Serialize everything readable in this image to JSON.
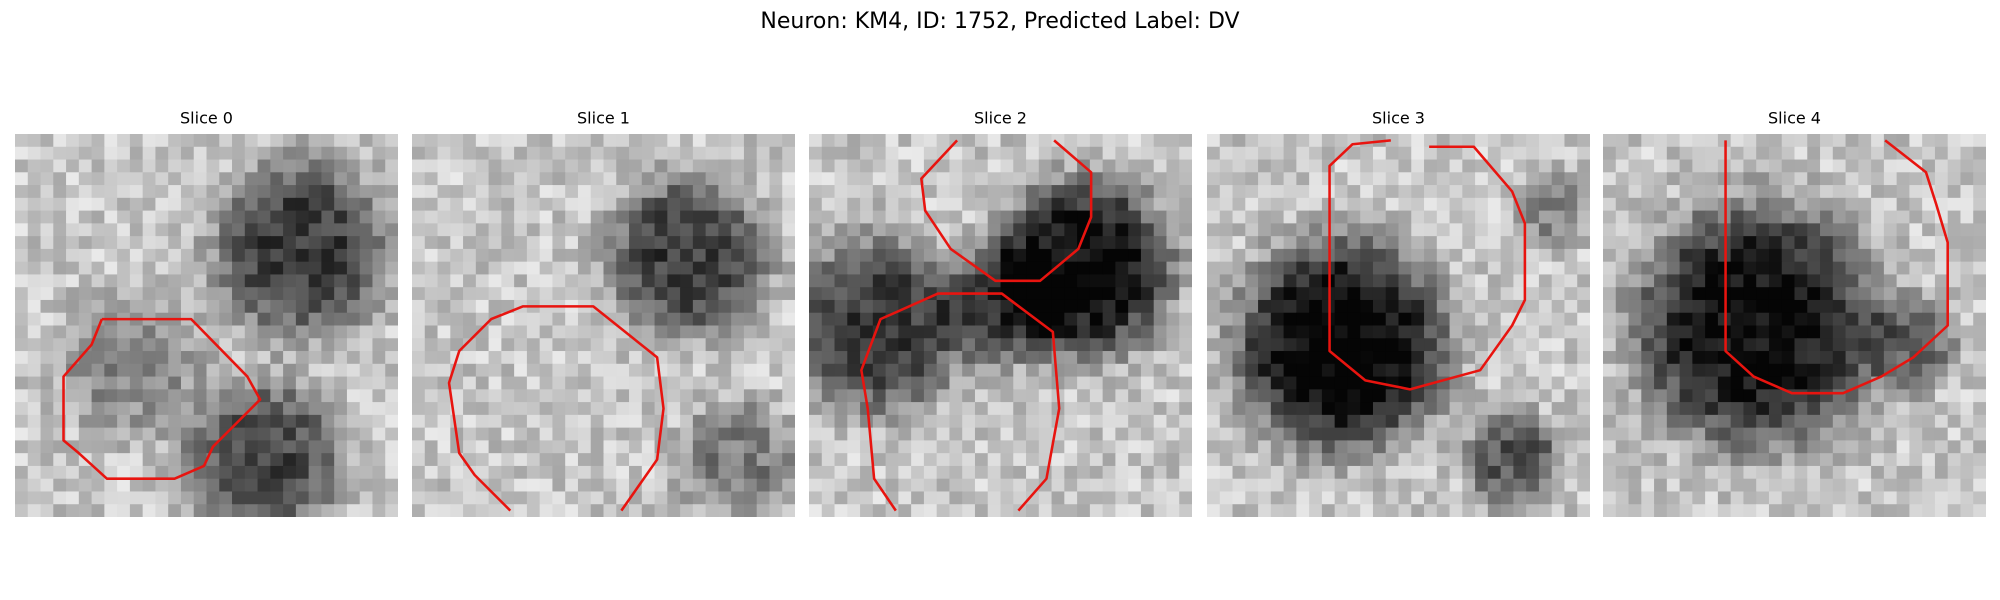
{
  "title": "Neuron: KM4, ID: 1752, Predicted Label: DV",
  "panels": [
    {
      "title": "Slice 0"
    },
    {
      "title": "Slice 1"
    },
    {
      "title": "Slice 2"
    },
    {
      "title": "Slice 3"
    },
    {
      "title": "Slice 4"
    }
  ]
}
